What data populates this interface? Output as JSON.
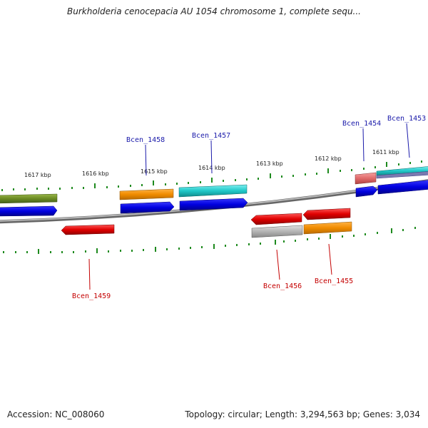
{
  "title": "Burkholderia cenocepacia AU 1054 chromosome 1, complete sequ...",
  "accession": "Accession: NC_008060",
  "summary": "Topology: circular; Length: 3,294,563 bp; Genes: 3,034",
  "ticks": [
    "1617 kbp",
    "1616 kbp",
    "1615 kbp",
    "1614 kbp",
    "1613 kbp",
    "1612 kbp",
    "1611 kbp"
  ],
  "gene_labels": {
    "forward": [
      "Bcen_1458",
      "Bcen_1457",
      "Bcen_1454",
      "Bcen_1453"
    ],
    "reverse": [
      "Bcen_1459",
      "Bcen_1456",
      "Bcen_1455"
    ]
  },
  "colors": {
    "backbone": "#8a8a8a",
    "tick": "#1e8a1e",
    "cds_blue": "#0000e0",
    "orange": "#f08c00",
    "cyan": "#20c8c8",
    "red": "#e00000",
    "olive": "#6b8a23",
    "grey": "#b4b4b4",
    "pink": "#e06a6a"
  }
}
